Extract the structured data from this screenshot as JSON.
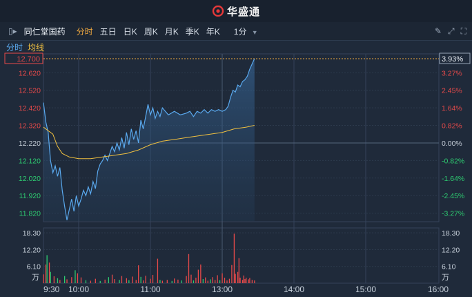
{
  "app": {
    "logo_text": "华盛通"
  },
  "toolbar": {
    "stock_name": "同仁堂国药",
    "tabs": [
      {
        "label": "分时",
        "active": true
      },
      {
        "label": "五日",
        "active": false
      },
      {
        "label": "日K",
        "active": false
      },
      {
        "label": "周K",
        "active": false
      },
      {
        "label": "月K",
        "active": false
      },
      {
        "label": "季K",
        "active": false
      },
      {
        "label": "年K",
        "active": false
      }
    ],
    "interval": "1分",
    "icons": [
      "pencil-icon",
      "expand-icon",
      "fullscreen-icon"
    ]
  },
  "subbar": {
    "mode_label": "分时",
    "ma_label": "均线"
  },
  "colors": {
    "up": "#e84a4a",
    "down": "#2ecc71",
    "price_line": "#5aa9ee",
    "avg_line": "#f0c040",
    "bg": "#1f2a3a",
    "grid": "#34435a",
    "active_tab": "#f0a940"
  },
  "chart_data": {
    "type": "line",
    "current_price_tag": "12.700",
    "current_change_tag": "3.93%",
    "price_ticks": [
      {
        "label": "12.620",
        "value": 12.62,
        "dir": "up"
      },
      {
        "label": "12.520",
        "value": 12.52,
        "dir": "up"
      },
      {
        "label": "12.420",
        "value": 12.42,
        "dir": "up"
      },
      {
        "label": "12.320",
        "value": 12.32,
        "dir": "up"
      },
      {
        "label": "12.220",
        "value": 12.22,
        "dir": "flat"
      },
      {
        "label": "12.120",
        "value": 12.12,
        "dir": "down"
      },
      {
        "label": "12.020",
        "value": 12.02,
        "dir": "down"
      },
      {
        "label": "11.920",
        "value": 11.92,
        "dir": "down"
      },
      {
        "label": "11.820",
        "value": 11.82,
        "dir": "down"
      }
    ],
    "pct_ticks": [
      {
        "label": "3.27%",
        "value": 12.62,
        "dir": "up"
      },
      {
        "label": "2.45%",
        "value": 12.52,
        "dir": "up"
      },
      {
        "label": "1.64%",
        "value": 12.42,
        "dir": "up"
      },
      {
        "label": "0.82%",
        "value": 12.32,
        "dir": "up"
      },
      {
        "label": "0.00%",
        "value": 12.22,
        "dir": "flat"
      },
      {
        "label": "-0.82%",
        "value": 12.12,
        "dir": "down"
      },
      {
        "label": "-1.64%",
        "value": 12.02,
        "dir": "down"
      },
      {
        "label": "-2.45%",
        "value": 11.92,
        "dir": "down"
      },
      {
        "label": "-3.27%",
        "value": 11.82,
        "dir": "down"
      }
    ],
    "price_range": [
      11.775,
      12.7
    ],
    "time_ticks": [
      "9:30",
      "10:00",
      "11:00",
      "13:00",
      "14:00",
      "15:00",
      "16:00"
    ],
    "volume_ticks": [
      "18.30",
      "12.20",
      "6.10"
    ],
    "volume_unit": "万",
    "volume_max": 20.1,
    "price_series": [
      [
        0,
        12.45
      ],
      [
        2,
        12.34
      ],
      [
        4,
        12.28
      ],
      [
        6,
        12.12
      ],
      [
        8,
        12.05
      ],
      [
        10,
        12.09
      ],
      [
        12,
        12.03
      ],
      [
        14,
        12.08
      ],
      [
        16,
        11.95
      ],
      [
        18,
        11.86
      ],
      [
        20,
        11.78
      ],
      [
        22,
        11.84
      ],
      [
        24,
        11.9
      ],
      [
        26,
        11.83
      ],
      [
        28,
        11.92
      ],
      [
        30,
        11.86
      ],
      [
        32,
        11.9
      ],
      [
        34,
        11.95
      ],
      [
        36,
        11.92
      ],
      [
        38,
        11.97
      ],
      [
        40,
        11.93
      ],
      [
        42,
        12.0
      ],
      [
        44,
        11.96
      ],
      [
        46,
        12.06
      ],
      [
        48,
        12.1
      ],
      [
        50,
        12.12
      ],
      [
        52,
        12.15
      ],
      [
        54,
        12.12
      ],
      [
        56,
        12.16
      ],
      [
        58,
        12.2
      ],
      [
        60,
        12.17
      ],
      [
        62,
        12.22
      ],
      [
        64,
        12.18
      ],
      [
        66,
        12.25
      ],
      [
        68,
        12.19
      ],
      [
        70,
        12.28
      ],
      [
        72,
        12.21
      ],
      [
        74,
        12.3
      ],
      [
        76,
        12.24
      ],
      [
        78,
        12.29
      ],
      [
        80,
        12.22
      ],
      [
        82,
        12.35
      ],
      [
        84,
        12.3
      ],
      [
        86,
        12.37
      ],
      [
        88,
        12.44
      ],
      [
        90,
        12.38
      ],
      [
        92,
        12.42
      ],
      [
        94,
        12.36
      ],
      [
        96,
        12.4
      ],
      [
        98,
        12.37
      ],
      [
        100,
        12.42
      ],
      [
        105,
        12.38
      ],
      [
        110,
        12.4
      ],
      [
        115,
        12.38
      ],
      [
        120,
        12.39
      ],
      [
        123,
        12.4
      ],
      [
        126,
        12.37
      ],
      [
        129,
        12.4
      ],
      [
        132,
        12.39
      ],
      [
        135,
        12.41
      ],
      [
        138,
        12.39
      ],
      [
        141,
        12.41
      ],
      [
        144,
        12.4
      ],
      [
        147,
        12.41
      ],
      [
        150,
        12.4
      ],
      [
        153,
        12.41
      ],
      [
        155,
        12.43
      ],
      [
        157,
        12.48
      ],
      [
        159,
        12.52
      ],
      [
        161,
        12.51
      ],
      [
        163,
        12.55
      ],
      [
        165,
        12.54
      ],
      [
        167,
        12.57
      ],
      [
        169,
        12.58
      ],
      [
        171,
        12.6
      ],
      [
        173,
        12.64
      ],
      [
        175,
        12.67
      ],
      [
        177,
        12.7
      ]
    ],
    "avg_series": [
      [
        0,
        12.31
      ],
      [
        4,
        12.29
      ],
      [
        8,
        12.27
      ],
      [
        12,
        12.2
      ],
      [
        16,
        12.16
      ],
      [
        22,
        12.14
      ],
      [
        30,
        12.13
      ],
      [
        40,
        12.13
      ],
      [
        50,
        12.14
      ],
      [
        60,
        12.15
      ],
      [
        70,
        12.16
      ],
      [
        80,
        12.18
      ],
      [
        90,
        12.21
      ],
      [
        100,
        12.23
      ],
      [
        110,
        12.24
      ],
      [
        120,
        12.25
      ],
      [
        130,
        12.26
      ],
      [
        140,
        12.27
      ],
      [
        150,
        12.28
      ],
      [
        160,
        12.3
      ],
      [
        170,
        12.31
      ],
      [
        177,
        12.32
      ]
    ],
    "volume_series": [
      [
        0,
        3.2,
        "up"
      ],
      [
        2,
        6.8,
        "up"
      ],
      [
        3,
        10.2,
        "down"
      ],
      [
        5,
        7.5,
        "up"
      ],
      [
        6,
        4.1,
        "down"
      ],
      [
        9,
        2.5,
        "up"
      ],
      [
        12,
        1.8,
        "down"
      ],
      [
        14,
        1.2,
        "up"
      ],
      [
        18,
        2.6,
        "down"
      ],
      [
        20,
        1.4,
        "up"
      ],
      [
        24,
        2.2,
        "up"
      ],
      [
        27,
        4.7,
        "down"
      ],
      [
        29,
        3.6,
        "up"
      ],
      [
        32,
        2.1,
        "up"
      ],
      [
        36,
        1.1,
        "down"
      ],
      [
        40,
        0.9,
        "up"
      ],
      [
        44,
        1.6,
        "up"
      ],
      [
        48,
        0.8,
        "down"
      ],
      [
        52,
        1.3,
        "up"
      ],
      [
        55,
        2.2,
        "down"
      ],
      [
        58,
        3.1,
        "up"
      ],
      [
        60,
        1.5,
        "up"
      ],
      [
        64,
        1.2,
        "down"
      ],
      [
        66,
        2.6,
        "up"
      ],
      [
        70,
        1.8,
        "up"
      ],
      [
        72,
        1.1,
        "down"
      ],
      [
        75,
        2.4,
        "up"
      ],
      [
        78,
        1.2,
        "up"
      ],
      [
        80,
        6.5,
        "up"
      ],
      [
        82,
        2.3,
        "down"
      ],
      [
        84,
        1.0,
        "up"
      ],
      [
        86,
        2.7,
        "up"
      ],
      [
        90,
        1.6,
        "up"
      ],
      [
        92,
        3.0,
        "up"
      ],
      [
        96,
        8.9,
        "up"
      ],
      [
        98,
        1.2,
        "down"
      ],
      [
        100,
        0.9,
        "up"
      ],
      [
        104,
        1.2,
        "up"
      ],
      [
        108,
        0.8,
        "down"
      ],
      [
        110,
        1.7,
        "up"
      ],
      [
        113,
        1.3,
        "up"
      ],
      [
        116,
        1.0,
        "down"
      ],
      [
        120,
        2.6,
        "up"
      ],
      [
        122,
        10.6,
        "up"
      ],
      [
        124,
        3.1,
        "up"
      ],
      [
        126,
        1.0,
        "down"
      ],
      [
        128,
        2.0,
        "up"
      ],
      [
        130,
        4.9,
        "up"
      ],
      [
        132,
        6.8,
        "up"
      ],
      [
        134,
        1.5,
        "down"
      ],
      [
        136,
        2.1,
        "up"
      ],
      [
        138,
        0.9,
        "up"
      ],
      [
        140,
        1.4,
        "down"
      ],
      [
        142,
        2.2,
        "up"
      ],
      [
        144,
        1.2,
        "up"
      ],
      [
        146,
        2.9,
        "up"
      ],
      [
        148,
        1.1,
        "down"
      ],
      [
        150,
        3.6,
        "up"
      ],
      [
        152,
        2.0,
        "up"
      ],
      [
        154,
        1.0,
        "up"
      ],
      [
        156,
        1.6,
        "up"
      ],
      [
        158,
        6.6,
        "up"
      ],
      [
        160,
        18.0,
        "up"
      ],
      [
        161,
        3.4,
        "up"
      ],
      [
        163,
        4.1,
        "up"
      ],
      [
        164,
        9.1,
        "up"
      ],
      [
        165,
        2.0,
        "up"
      ],
      [
        167,
        1.2,
        "up"
      ],
      [
        168,
        2.8,
        "up"
      ],
      [
        169,
        1.5,
        "up"
      ],
      [
        170,
        2.0,
        "up"
      ],
      [
        172,
        1.4,
        "up"
      ],
      [
        173,
        1.9,
        "up"
      ],
      [
        175,
        1.2,
        "up"
      ],
      [
        177,
        1.0,
        "up"
      ]
    ]
  }
}
